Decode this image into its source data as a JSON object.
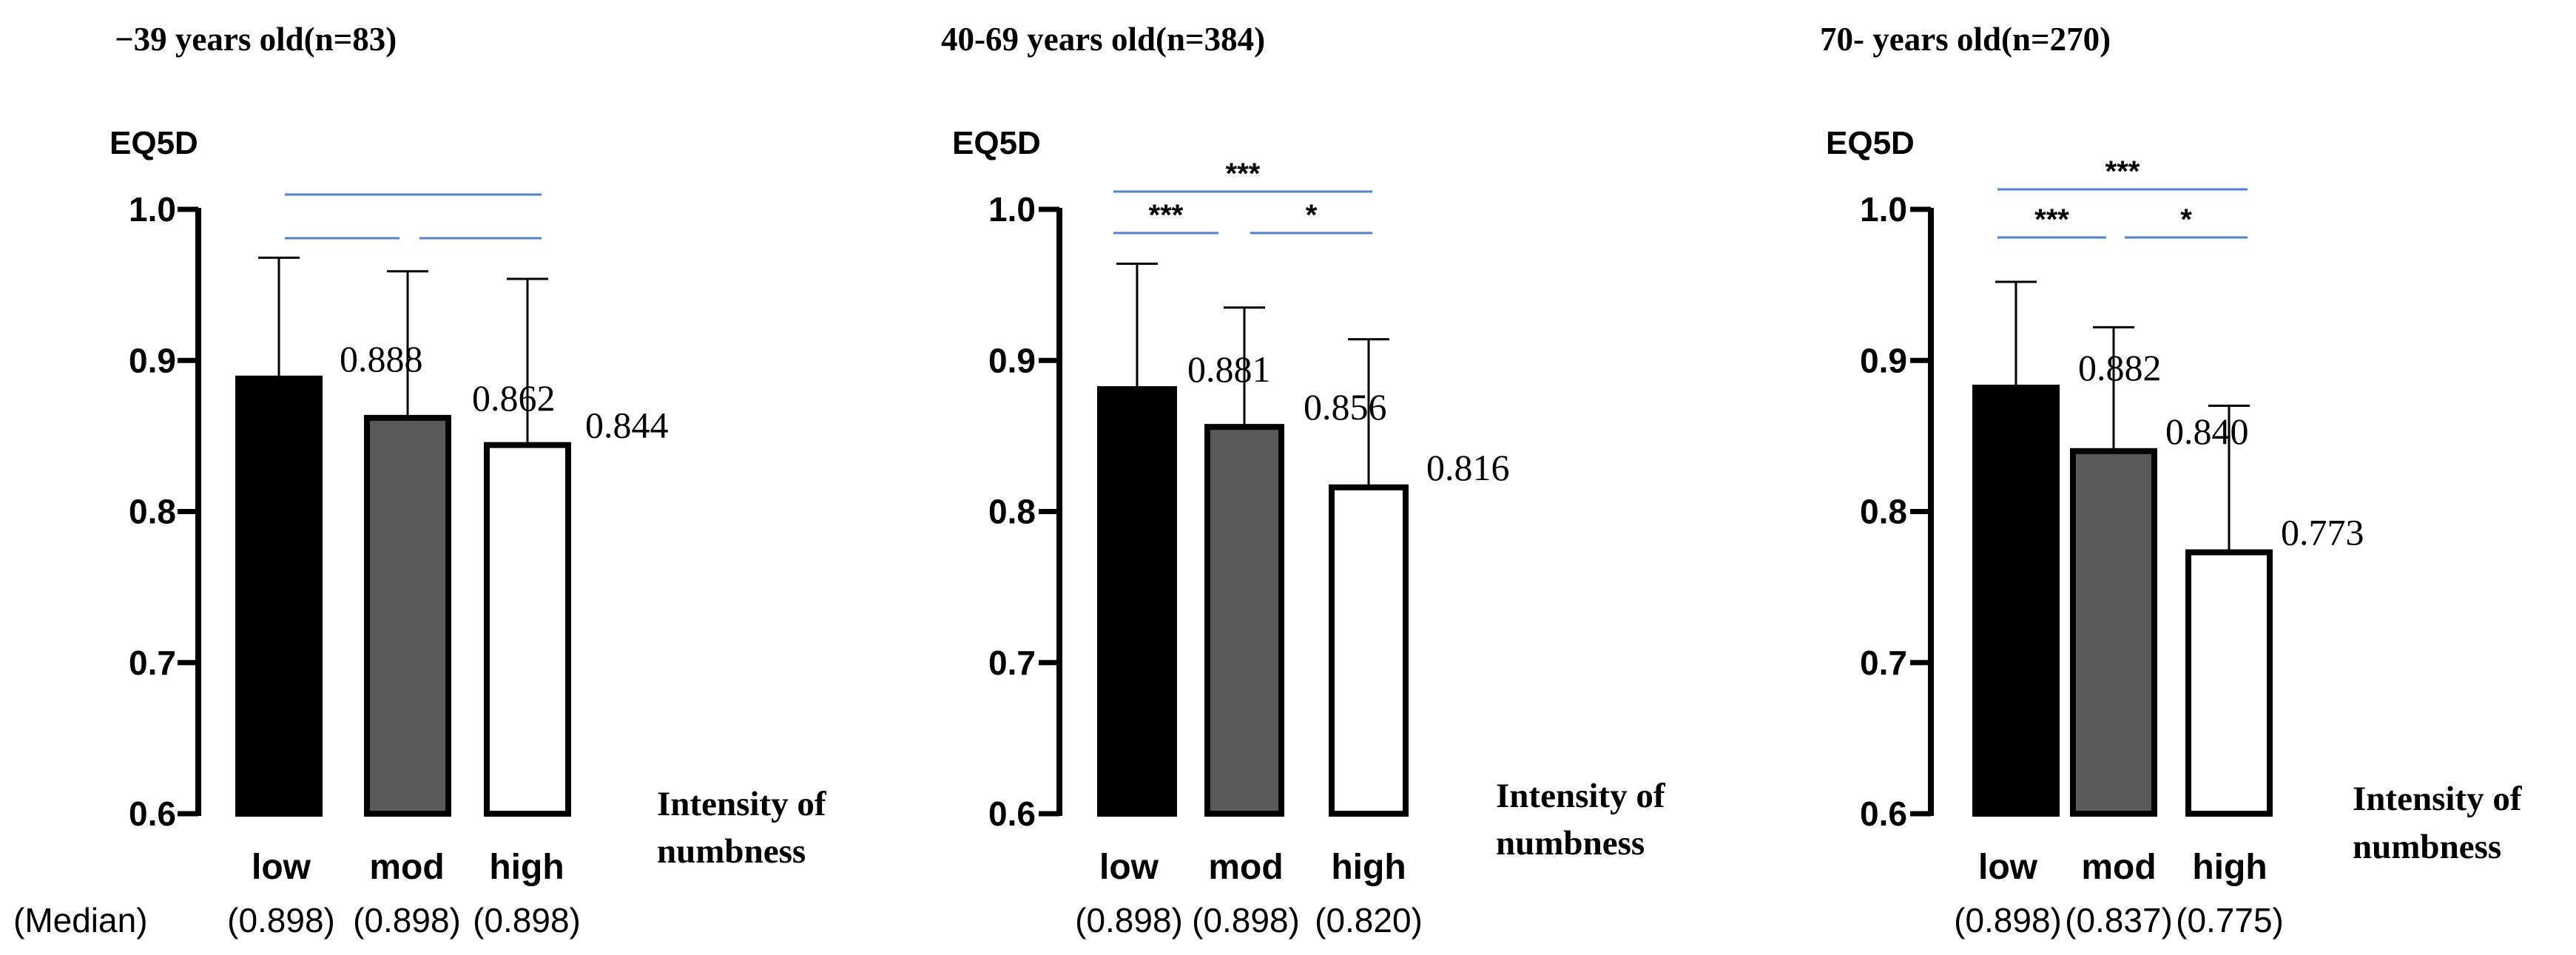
{
  "figure": {
    "median_row_label": "(Median)",
    "numbness_label_line1": "Intensity of",
    "numbness_label_line2": "numbness"
  },
  "chart_data": [
    {
      "type": "bar",
      "title": "−39 years old(n=83)",
      "ylabel": "EQ5D",
      "xlabel": "Intensity of numbness",
      "ylim": [
        0.6,
        1.0
      ],
      "yticks": [
        "0.6",
        "0.7",
        "0.8",
        "0.9",
        "1.0"
      ],
      "grid": false,
      "categories": [
        "low",
        "mod",
        "high"
      ],
      "values": [
        0.888,
        0.862,
        0.844
      ],
      "value_labels": [
        "0.888",
        "0.862",
        "0.844"
      ],
      "error_upper": [
        0.968,
        0.959,
        0.954
      ],
      "medians": [
        "(0.898)",
        "(0.898)",
        "(0.898)"
      ],
      "bar_colors": [
        "#000000",
        "#595959",
        "#ffffff"
      ],
      "significance": [
        {
          "from": 0,
          "to": 2,
          "label": ""
        },
        {
          "from": 0,
          "to": 1,
          "label": ""
        },
        {
          "from": 1,
          "to": 2,
          "label": ""
        }
      ]
    },
    {
      "type": "bar",
      "title": "40-69 years old(n=384)",
      "ylabel": "EQ5D",
      "xlabel": "Intensity of numbness",
      "ylim": [
        0.6,
        1.0
      ],
      "yticks": [
        "0.6",
        "0.7",
        "0.8",
        "0.9",
        "1.0"
      ],
      "grid": false,
      "categories": [
        "low",
        "mod",
        "high"
      ],
      "values": [
        0.881,
        0.856,
        0.816
      ],
      "value_labels": [
        "0.881",
        "0.856",
        "0.816"
      ],
      "error_upper": [
        0.964,
        0.935,
        0.914
      ],
      "medians": [
        "(0.898)",
        "(0.898)",
        "(0.820)"
      ],
      "bar_colors": [
        "#000000",
        "#595959",
        "#ffffff"
      ],
      "significance": [
        {
          "from": 0,
          "to": 2,
          "label": "***"
        },
        {
          "from": 0,
          "to": 1,
          "label": "***"
        },
        {
          "from": 1,
          "to": 2,
          "label": "*"
        }
      ]
    },
    {
      "type": "bar",
      "title": "70- years old(n=270)",
      "ylabel": "EQ5D",
      "xlabel": "Intensity of numbness",
      "ylim": [
        0.6,
        1.0
      ],
      "yticks": [
        "0.6",
        "0.7",
        "0.8",
        "0.9",
        "1.0"
      ],
      "grid": false,
      "categories": [
        "low",
        "mod",
        "high"
      ],
      "values": [
        0.882,
        0.84,
        0.773
      ],
      "value_labels": [
        "0.882",
        "0.840",
        "0.773"
      ],
      "error_upper": [
        0.952,
        0.922,
        0.87
      ],
      "medians": [
        "(0.898)",
        "(0.837)",
        "(0.775)"
      ],
      "bar_colors": [
        "#000000",
        "#595959",
        "#ffffff"
      ],
      "significance": [
        {
          "from": 0,
          "to": 2,
          "label": "***"
        },
        {
          "from": 0,
          "to": 1,
          "label": "***"
        },
        {
          "from": 1,
          "to": 2,
          "label": "*"
        }
      ]
    }
  ]
}
